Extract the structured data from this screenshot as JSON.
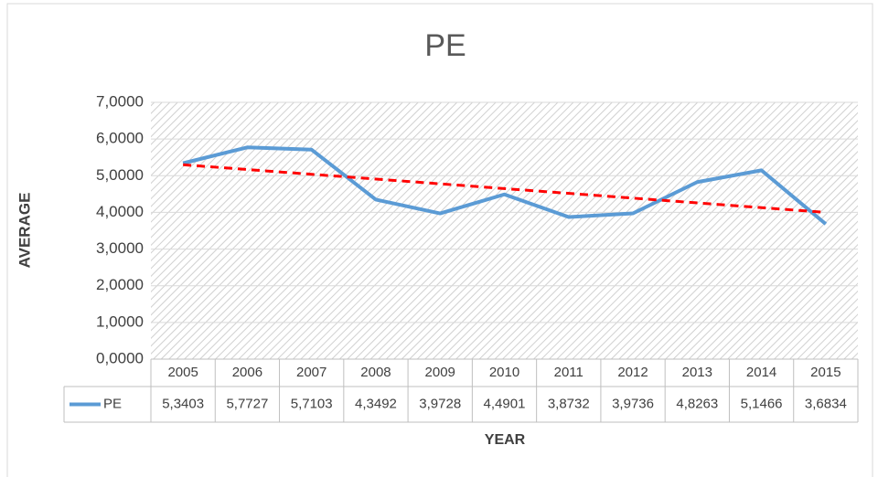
{
  "chart_data": {
    "type": "line",
    "title": "PE",
    "x_label": "YEAR",
    "y_label": "AVERAGE",
    "categories": [
      "2005",
      "2006",
      "2007",
      "2008",
      "2009",
      "2010",
      "2011",
      "2012",
      "2013",
      "2014",
      "2015"
    ],
    "series": [
      {
        "name": "PE",
        "color": "#5b9bd5",
        "values": [
          5.3403,
          5.7727,
          5.7103,
          4.3492,
          3.9728,
          4.4901,
          3.8732,
          3.9736,
          4.8263,
          5.1466,
          3.6834
        ],
        "value_labels": [
          "5,3403",
          "5,7727",
          "5,7103",
          "4,3492",
          "3,9728",
          "4,4901",
          "3,8732",
          "3,9736",
          "4,8263",
          "5,1466",
          "3,6834"
        ],
        "trendline": "linear",
        "trendline_color": "#ff0000"
      }
    ],
    "ylim": [
      0,
      7
    ],
    "yticks": [
      {
        "value": 0,
        "label": "0,0000"
      },
      {
        "value": 1,
        "label": "1,0000"
      },
      {
        "value": 2,
        "label": "2,0000"
      },
      {
        "value": 3,
        "label": "3,0000"
      },
      {
        "value": 4,
        "label": "4,0000"
      },
      {
        "value": 5,
        "label": "5,0000"
      },
      {
        "value": 6,
        "label": "6,0000"
      },
      {
        "value": 7,
        "label": "7,0000"
      }
    ],
    "grid": true,
    "data_table": true
  }
}
